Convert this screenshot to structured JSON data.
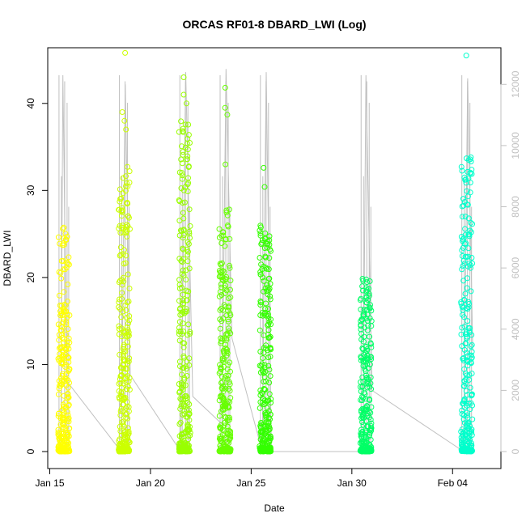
{
  "chart_data": {
    "type": "scatter",
    "title": "ORCAS RF01-8 DBARD_LWI (Log)",
    "xlabel": "Date",
    "ylabel": "DBARD_LWI",
    "x_ticks": [
      "Jan 15",
      "Jan 20",
      "Jan 25",
      "Jan 30",
      "Feb 04"
    ],
    "x_tick_days": [
      0,
      5,
      10,
      15,
      20
    ],
    "xlim_days": [
      -0.1,
      22.4
    ],
    "ylim": [
      0,
      45
    ],
    "y_ticks": [
      0,
      10,
      20,
      30,
      40
    ],
    "y2lim": [
      0,
      12800
    ],
    "y2_ticks": [
      0,
      2000,
      4000,
      6000,
      8000,
      10000,
      12000
    ],
    "grid": false,
    "flights": [
      {
        "day": 0.7,
        "color": "#ffff00",
        "max": 26,
        "extremes": []
      },
      {
        "day": 3.7,
        "color": "#ccff00",
        "max": 33,
        "extremes": [
          45.8,
          39,
          38,
          37
        ]
      },
      {
        "day": 6.7,
        "color": "#99ff00",
        "max": 38,
        "extremes": [
          43,
          41,
          40
        ]
      },
      {
        "day": 8.7,
        "color": "#66ff00",
        "max": 28,
        "extremes": [
          41.8,
          39.5,
          38.7,
          33
        ]
      },
      {
        "day": 10.7,
        "color": "#33ff00",
        "max": 26,
        "extremes": [
          32.6,
          30.4
        ]
      },
      {
        "day": 15.7,
        "color": "#00ff66",
        "max": 20,
        "extremes": []
      },
      {
        "day": 20.7,
        "color": "#00ffcc",
        "max": 34,
        "extremes": [
          45.5
        ]
      }
    ],
    "altitude_line": {
      "color": "#c0c0c0",
      "days": [
        0.55,
        0.65,
        0.85,
        3.55,
        3.75,
        4.0,
        6.5,
        6.75,
        7.1,
        8.55,
        8.75,
        9.05,
        10.55,
        10.75,
        11.0,
        15.55,
        15.7,
        16.0,
        20.55,
        20.75,
        21.0
      ],
      "values": [
        0,
        12300,
        2300,
        0,
        12000,
        2500,
        0,
        12400,
        1800,
        900,
        12500,
        3700,
        0,
        12400,
        0,
        0,
        12300,
        2000,
        0,
        12200,
        3300
      ]
    }
  }
}
